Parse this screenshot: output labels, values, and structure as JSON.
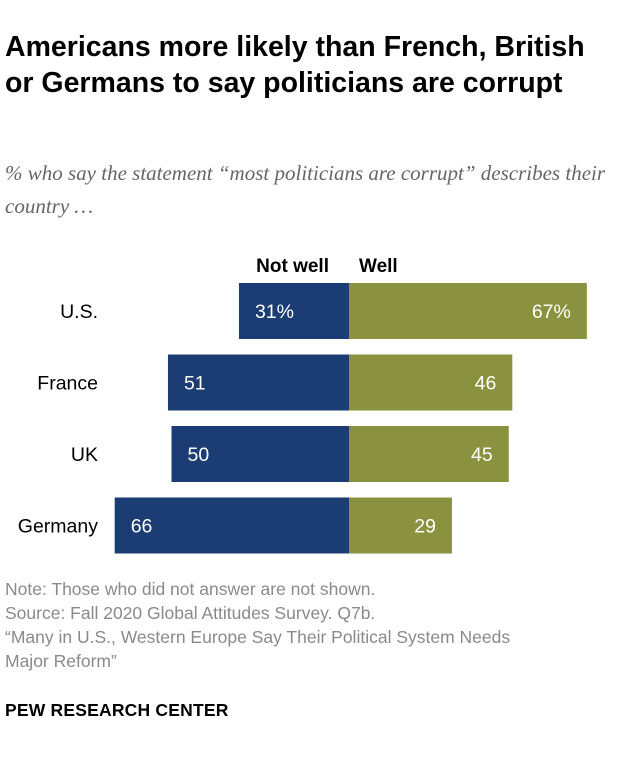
{
  "header": {
    "title": "Americans more likely than French, British or Germans to say politicians are corrupt",
    "subtitle": "% who say the statement “most politicians are corrupt” describes their country …"
  },
  "chart_data": {
    "type": "bar",
    "orientation": "horizontal-diverging",
    "categories": [
      "U.S.",
      "France",
      "UK",
      "Germany"
    ],
    "series": [
      {
        "name": "Not well",
        "values": [
          31,
          51,
          50,
          66
        ],
        "labels": [
          "31%",
          "51",
          "50",
          "66"
        ],
        "color": "#1b3d73"
      },
      {
        "name": "Well",
        "values": [
          67,
          46,
          45,
          29
        ],
        "labels": [
          "67%",
          "46",
          "45",
          "29"
        ],
        "color": "#8a923f"
      }
    ],
    "title": "Americans more likely than French, British or Germans to say politicians are corrupt",
    "xlabel": "",
    "ylabel": "",
    "xlim": [
      0,
      100
    ],
    "grid": false,
    "legend": "top"
  },
  "footer": {
    "note": "Note: Those who did not answer are not shown.",
    "source": "Source: Fall 2020 Global Attitudes Survey. Q7b.",
    "report_line1": "“Many in U.S., Western Europe Say Their Political System Needs",
    "report_line2": "Major Reform”",
    "org": "PEW RESEARCH CENTER"
  },
  "colors": {
    "not_well": "#1b3d73",
    "well": "#8a923f",
    "note_text": "#8a8a8a",
    "subtitle_text": "#666666"
  }
}
